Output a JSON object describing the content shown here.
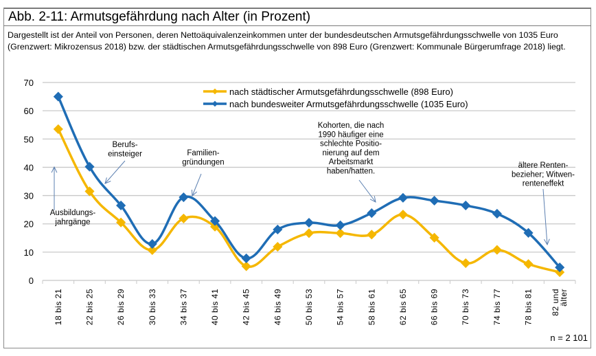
{
  "title": "Abb. 2-11: Armutsgefährdung nach Alter (in Prozent)",
  "description": "Dargestellt ist der Anteil von Personen, deren Nettoäquivalenzeinkommen unter der bundesdeutschen Armutsgefährdungsschwelle von 1035 Euro (Grenzwert: Mikrozensus 2018) bzw. der städtischen Armutsgefährdungsschwelle von 898 Euro (Grenzwert: Kommunale Bürgerumfrage 2018) liegt.",
  "footnote": "n = 2 101",
  "chart_data": {
    "type": "line",
    "smooth": true,
    "ylim": [
      0,
      70
    ],
    "yticks": [
      0,
      10,
      20,
      30,
      40,
      50,
      60,
      70
    ],
    "grid": true,
    "legend": "top-right",
    "categories": [
      "18 bis 21",
      "22 bis 25",
      "26 bis 29",
      "30 bis 33",
      "34 bis 37",
      "40 bis 41",
      "42 bis 45",
      "46 bis 49",
      "50 bis 53",
      "54 bis 57",
      "58 bis 61",
      "62 bis 65",
      "66 bis 69",
      "70 bis 73",
      "74 bis 77",
      "78 bis 81",
      [
        "82 und",
        "älter"
      ]
    ],
    "series": [
      {
        "name": "nach städtischer Armutsgefährdungsschwelle (898 Euro)",
        "color": "#f5b700",
        "values": [
          53.5,
          31.5,
          20.5,
          10.7,
          21.9,
          19,
          5,
          11.9,
          16.7,
          16.7,
          16.2,
          23.3,
          15.1,
          6.1,
          10.8,
          5.8,
          2.9
        ]
      },
      {
        "name": "nach bundesweiter Armutsgefährdungsschwelle (1035 Euro)",
        "color": "#1f6db5",
        "values": [
          65,
          40.2,
          26.5,
          12.9,
          29.4,
          21,
          7.8,
          18,
          20.4,
          19.5,
          23.8,
          29.2,
          28.2,
          26.5,
          23.6,
          16.8,
          4.6
        ]
      }
    ],
    "annotations": [
      {
        "lines": [
          "Ausbildungs-",
          "jahrgänge"
        ]
      },
      {
        "lines": [
          "Berufs-",
          "einsteiger"
        ]
      },
      {
        "lines": [
          "Familien-",
          "gründungen"
        ]
      },
      {
        "lines": [
          "Kohorten, die nach",
          "1990 häufiger eine",
          "schlechte Positio-",
          "nierung auf dem",
          "Arbeitsmarkt",
          "haben/hatten."
        ]
      },
      {
        "lines": [
          "ältere Renten-",
          "bezieher; Witwen-",
          "renteneffekt"
        ]
      }
    ]
  }
}
